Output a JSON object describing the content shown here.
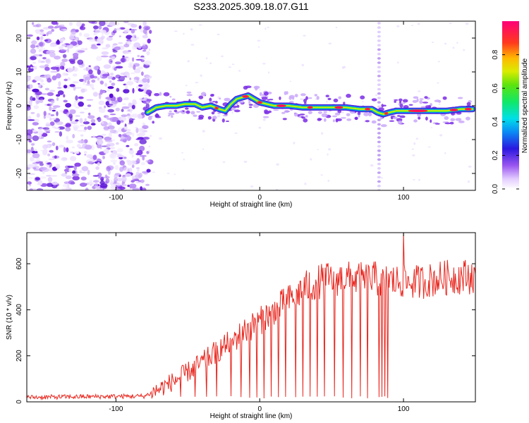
{
  "title": "S233.2025.309.18.07.G11",
  "chart_data": [
    {
      "type": "heatmap",
      "name": "spectrogram",
      "xlabel": "Height of straight line (km)",
      "ylabel": "Frequency (Hz)",
      "xlim": [
        -162,
        150
      ],
      "ylim": [
        -25,
        25
      ],
      "xticks": [
        -100,
        0,
        100
      ],
      "yticks": [
        -20,
        -10,
        0,
        10,
        20
      ],
      "colorbar": {
        "label": "Normalized spectral amplitude",
        "range": [
          0,
          1
        ],
        "ticks": [
          0.0,
          0.2,
          0.4,
          0.6,
          0.8
        ]
      },
      "noise_region_x": [
        -162,
        -78
      ],
      "signal_start_x": -78,
      "tone_track": {
        "x": [
          -78,
          -72,
          -65,
          -58,
          -52,
          -45,
          -40,
          -34,
          -28,
          -24,
          -20,
          -16,
          -12,
          -8,
          -4,
          0,
          10,
          20,
          30,
          40,
          50,
          60,
          70,
          78,
          82,
          86,
          90,
          95,
          100,
          110,
          120,
          130,
          140,
          148
        ],
        "freq": [
          -2,
          -0.5,
          0,
          0,
          0.5,
          0.5,
          -0.5,
          0,
          -1,
          -1.5,
          0.5,
          2,
          2.5,
          3,
          2,
          1,
          0,
          0,
          -0.5,
          -0.5,
          -0.5,
          -0.5,
          -1,
          -1,
          -2,
          -2.5,
          -2,
          -1.5,
          -1.5,
          -1.5,
          -1.5,
          -1.5,
          -1,
          -1
        ]
      },
      "vertical_streak_x": 83
    },
    {
      "type": "line",
      "name": "snr",
      "xlabel": "Height of straight line (km)",
      "ylabel": "SNR (10 * v/v)",
      "xlim": [
        -162,
        150
      ],
      "ylim": [
        0,
        735
      ],
      "xticks": [
        -100,
        0,
        100
      ],
      "yticks": [
        0,
        200,
        400,
        600
      ],
      "color": "#e8271f",
      "trend": {
        "x": [
          -162,
          -80,
          -70,
          -60,
          -50,
          -40,
          -30,
          -20,
          -10,
          0,
          10,
          20,
          30,
          40,
          50,
          60,
          70,
          80,
          90,
          100,
          110,
          120,
          130,
          140,
          150
        ],
        "y": [
          20,
          25,
          55,
          90,
          130,
          170,
          220,
          260,
          310,
          350,
          400,
          440,
          490,
          520,
          535,
          535,
          530,
          535,
          525,
          520,
          520,
          530,
          540,
          545,
          545
        ]
      },
      "dropouts_x": [
        -55,
        -45,
        -37,
        -30,
        -20,
        -13,
        -7,
        -2,
        3,
        8,
        13,
        18,
        25,
        30,
        35,
        40,
        45,
        52,
        58,
        64,
        70,
        75,
        83,
        85,
        87,
        89
      ],
      "spike": {
        "x": 100,
        "y": 735
      }
    }
  ]
}
